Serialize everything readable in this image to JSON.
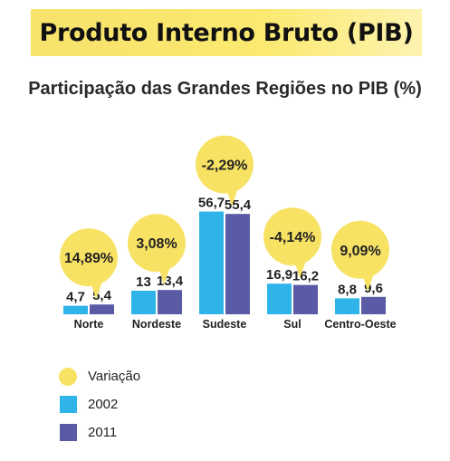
{
  "header": {
    "title": "Produto Interno Bruto (PIB)"
  },
  "chart_data": {
    "type": "bar",
    "title": "Participação das Grandes Regiões no PIB (%)",
    "categories": [
      "Norte",
      "Nordeste",
      "Sudeste",
      "Sul",
      "Centro-Oeste"
    ],
    "series": [
      {
        "name": "2002",
        "values": [
          4.7,
          13,
          56.7,
          16.9,
          8.8
        ],
        "labels": [
          "4,7",
          "13",
          "56,7",
          "16,9",
          "8,8"
        ],
        "color": "#2fb4ea"
      },
      {
        "name": "2011",
        "values": [
          5.4,
          13.4,
          55.4,
          16.2,
          9.6
        ],
        "labels": [
          "5,4",
          "13,4",
          "55,4",
          "16,2",
          "9,6"
        ],
        "color": "#5a5ba6"
      }
    ],
    "variation": {
      "name": "Variação",
      "values": [
        14.89,
        3.08,
        -2.29,
        -4.14,
        9.09
      ],
      "labels": [
        "14,89%",
        "3,08%",
        "-2,29%",
        "-4,14%",
        "9,09%"
      ],
      "color": "#f7e264"
    },
    "ylim": [
      0,
      60
    ],
    "grid": false,
    "legend_position": "bottom-left"
  }
}
